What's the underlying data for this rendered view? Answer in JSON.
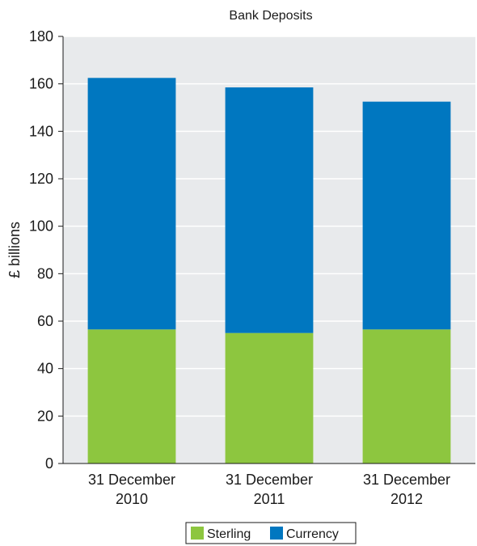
{
  "chart_data": {
    "type": "bar",
    "stacked": true,
    "title": "Bank Deposits",
    "xlabel": "",
    "ylabel": "£ billions",
    "ylim": [
      0,
      180
    ],
    "yticks": [
      0,
      20,
      40,
      60,
      80,
      100,
      120,
      140,
      160,
      180
    ],
    "grid": true,
    "legend": "bottom",
    "categories": [
      [
        "31 December",
        "2010"
      ],
      [
        "31 December",
        "2011"
      ],
      [
        "31 December",
        "2012"
      ]
    ],
    "series": [
      {
        "name": "Sterling",
        "color": "#8dc63f",
        "values": [
          56.5,
          55,
          56.5
        ]
      },
      {
        "name": "Currency",
        "color": "#0077c0",
        "values": [
          106,
          103.5,
          96
        ]
      }
    ]
  }
}
